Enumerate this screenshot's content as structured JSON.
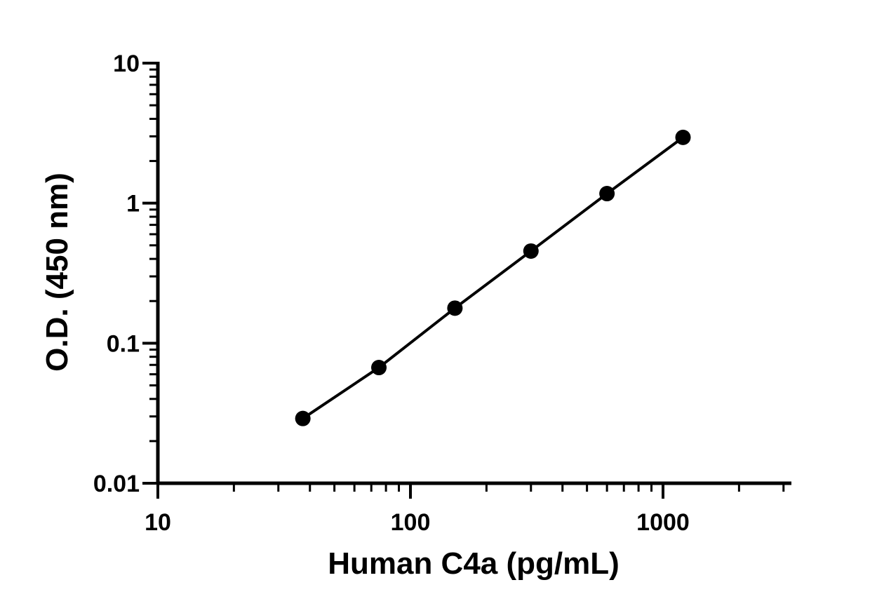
{
  "chart_data": {
    "type": "line",
    "title": "",
    "xlabel": "Human C4a (pg/mL)",
    "ylabel": "O.D. (450 nm)",
    "x_scale": "log",
    "y_scale": "log",
    "xlim": [
      10,
      3000
    ],
    "ylim": [
      0.01,
      10
    ],
    "x_ticks": [
      {
        "value": 10,
        "label": "10"
      },
      {
        "value": 100,
        "label": "100"
      },
      {
        "value": 1000,
        "label": "1000"
      }
    ],
    "y_ticks": [
      {
        "value": 0.01,
        "label": "0.01"
      },
      {
        "value": 0.1,
        "label": "0.1"
      },
      {
        "value": 1,
        "label": "1"
      },
      {
        "value": 10,
        "label": "10"
      }
    ],
    "grid": false,
    "legend": "none",
    "series": [
      {
        "x": [
          37.5,
          75,
          150,
          300,
          600,
          1200
        ],
        "y": [
          0.029,
          0.067,
          0.178,
          0.455,
          1.17,
          2.95
        ]
      }
    ]
  },
  "colors": {
    "axis": "#000000",
    "series": "#000000",
    "background": "#ffffff"
  }
}
